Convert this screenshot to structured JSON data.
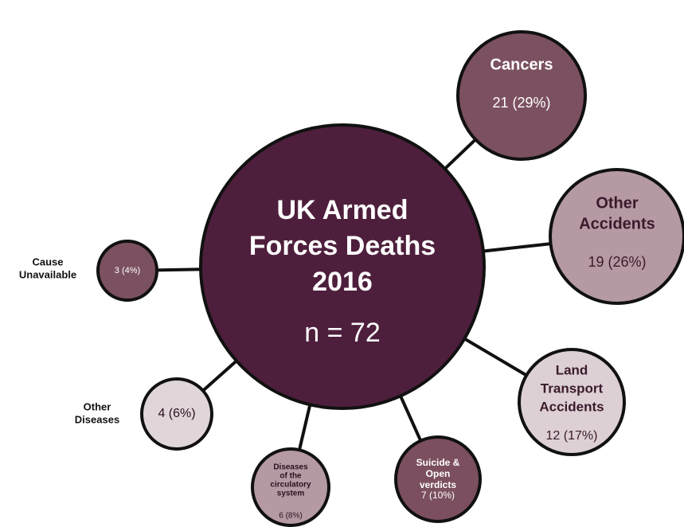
{
  "center": {
    "title_lines": [
      "UK Armed",
      "Forces Deaths",
      "2016"
    ],
    "total_text": "n = 72"
  },
  "nodes": [
    {
      "label_lines": [
        "Cancers"
      ],
      "value_text": "21 (29%)"
    },
    {
      "label_lines": [
        "Other",
        "Accidents"
      ],
      "value_text": "19 (26%)"
    },
    {
      "label_lines": [
        "Land",
        "Transport",
        "Accidents"
      ],
      "value_text": "12 (17%)"
    },
    {
      "label_lines": [
        "Suicide &",
        "Open",
        "verdicts"
      ],
      "value_text": "7 (10%)"
    },
    {
      "label_lines": [
        "Diseases",
        "of the",
        "circulatory",
        "system"
      ],
      "value_text": "6 (8%)"
    },
    {
      "label_lines": [
        "Other",
        "Diseases"
      ],
      "value_text": "4 (6%)"
    },
    {
      "label_lines": [
        "Cause",
        "Unavailable"
      ],
      "value_text": "3 (4%)"
    }
  ]
}
